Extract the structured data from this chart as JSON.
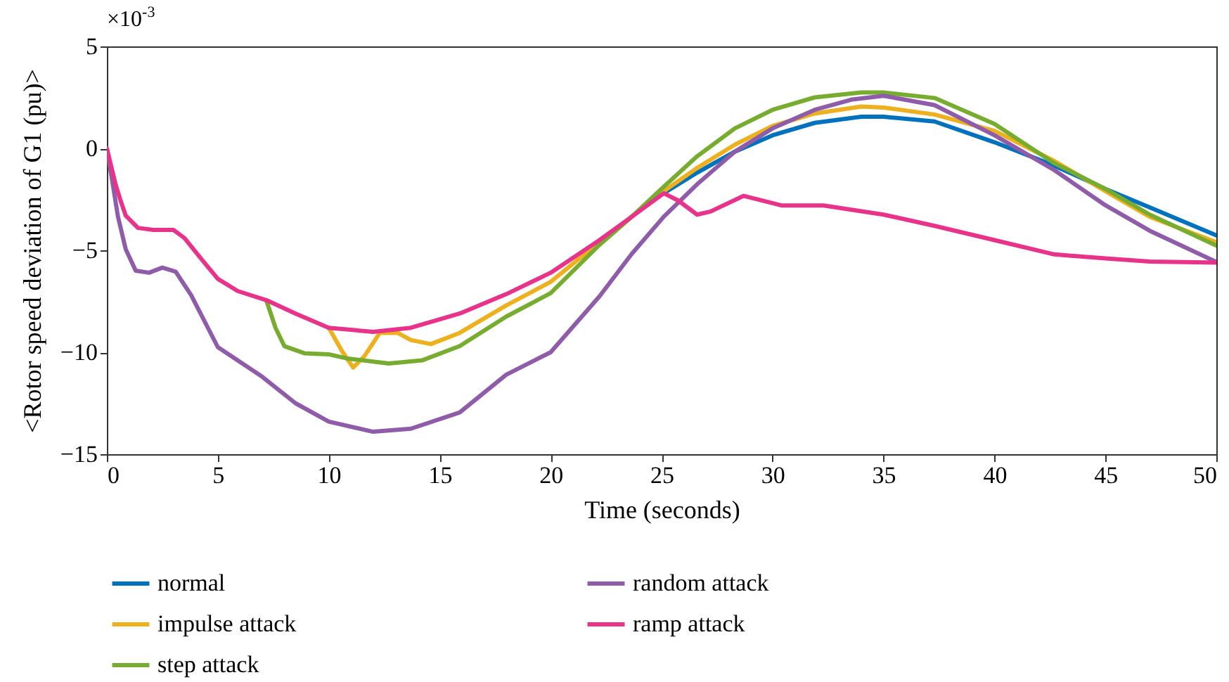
{
  "chart_data": {
    "type": "line",
    "xlabel": "Time (seconds)",
    "ylabel": "<Rotor speed deviation of G1 (pu)>",
    "annotations": [
      "×10$^{-3}$"
    ],
    "xlim": [
      0,
      50
    ],
    "ylim": [
      -15,
      5
    ],
    "xticks": [
      0,
      5,
      10,
      15,
      20,
      25,
      30,
      35,
      40,
      45,
      50
    ],
    "yticks": [
      -15,
      -10,
      -5,
      0,
      5
    ],
    "legend": "bottom",
    "series": [
      {
        "name": "normal",
        "color": "#0072bd",
        "x": [
          25.1,
          26.6,
          28.3,
          30,
          31.9,
          34,
          35,
          37.3,
          40,
          42.7,
          45,
          47,
          50
        ],
        "values": [
          -2.2,
          -1.19,
          -0.16,
          0.64,
          1.25,
          1.55,
          1.55,
          1.32,
          0.3,
          -0.85,
          -1.99,
          -2.9,
          -4.27
        ]
      },
      {
        "name": "impulse attack",
        "color": "#edb120",
        "x": [
          10,
          10.6,
          11.1,
          11.6,
          12.3,
          13.1,
          13.7,
          14.6,
          15.9,
          18,
          20,
          22.2,
          25.1,
          26.6,
          28.3,
          30,
          31.9,
          34,
          35,
          37.3,
          40,
          42.7,
          45,
          47,
          50
        ],
        "values": [
          -8.8,
          -9.95,
          -10.75,
          -10.2,
          -9.05,
          -9.05,
          -9.4,
          -9.6,
          -9.05,
          -7.7,
          -6.55,
          -4.6,
          -2.1,
          -0.96,
          0.18,
          1.1,
          1.71,
          2.05,
          2.0,
          1.66,
          0.86,
          -0.62,
          -2.1,
          -3.36,
          -4.6
        ]
      },
      {
        "name": "step attack",
        "color": "#77ac30",
        "x": [
          7.2,
          7.6,
          8,
          8.9,
          10,
          10.8,
          12.7,
          14.2,
          15.9,
          18,
          20,
          22.2,
          23.65,
          25.1,
          26.6,
          28.3,
          30,
          31.9,
          34,
          35,
          37.3,
          40,
          42.7,
          45,
          47,
          50
        ],
        "values": [
          -7.5,
          -8.8,
          -9.7,
          -10.05,
          -10.1,
          -10.3,
          -10.55,
          -10.4,
          -9.7,
          -8.25,
          -7.1,
          -4.73,
          -3.36,
          -1.88,
          -0.39,
          0.98,
          1.89,
          2.5,
          2.74,
          2.74,
          2.47,
          1.2,
          -0.73,
          -1.99,
          -3.25,
          -4.77
        ]
      },
      {
        "name": "random attack",
        "color": "#8e5ca8",
        "x": [
          0,
          0.2,
          0.5,
          0.85,
          1.3,
          1.9,
          2.5,
          3.1,
          3.8,
          5,
          7,
          8.5,
          10,
          12,
          13.7,
          15.9,
          18,
          20,
          22.2,
          23.65,
          25.1,
          26.6,
          28.3,
          30,
          31.9,
          33.6,
          35,
          37.3,
          40,
          42.7,
          45,
          47,
          50
        ],
        "values": [
          0,
          -1.3,
          -3.35,
          -4.95,
          -6.0,
          -6.1,
          -5.85,
          -6.05,
          -7.2,
          -9.75,
          -11.2,
          -12.5,
          -13.4,
          -13.9,
          -13.75,
          -12.95,
          -11.1,
          -10.0,
          -7.26,
          -5.18,
          -3.35,
          -1.76,
          -0.16,
          0.98,
          1.89,
          2.4,
          2.58,
          2.12,
          0.64,
          -1.07,
          -2.79,
          -4.04,
          -5.57
        ]
      },
      {
        "name": "ramp attack",
        "color": "#e8338a",
        "x": [
          0,
          0.4,
          0.6,
          0.85,
          1.4,
          2.1,
          3,
          3.5,
          4.2,
          5,
          5.9,
          7.2,
          8.5,
          10,
          12,
          13.7,
          15.9,
          18,
          20,
          22.2,
          23.65,
          25.1,
          25.75,
          26.6,
          27.2,
          28.7,
          30.4,
          32.3,
          35,
          37.3,
          40,
          42.7,
          45,
          47,
          50
        ],
        "values": [
          0,
          -1.8,
          -2.5,
          -3.3,
          -3.9,
          -4.0,
          -4.0,
          -4.4,
          -5.35,
          -6.4,
          -7.0,
          -7.45,
          -8.1,
          -8.8,
          -9.0,
          -8.8,
          -8.1,
          -7.15,
          -6.1,
          -4.5,
          -3.36,
          -2.2,
          -2.56,
          -3.25,
          -3.1,
          -2.33,
          -2.8,
          -2.8,
          -3.25,
          -3.8,
          -4.5,
          -5.2,
          -5.4,
          -5.55,
          -5.6
        ]
      }
    ]
  }
}
